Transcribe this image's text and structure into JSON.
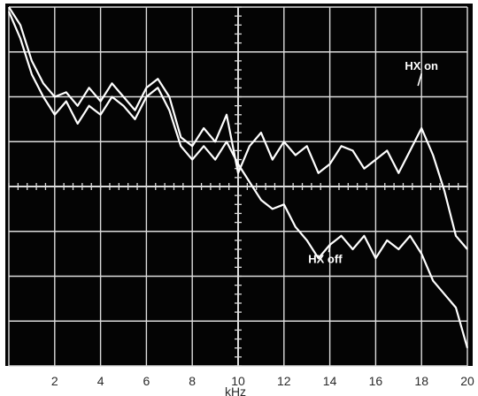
{
  "chart_data": {
    "type": "line",
    "xlabel": "kHz",
    "xlim": [
      0,
      20
    ],
    "ylim": [
      0,
      8
    ],
    "grid": true,
    "x_tick_labels": [
      "2",
      "4",
      "6",
      "8",
      "10",
      "12",
      "14",
      "16",
      "18",
      "20"
    ],
    "x_tick_values": [
      2,
      4,
      6,
      8,
      10,
      12,
      14,
      16,
      18,
      20
    ],
    "annotations": [
      {
        "text": "HX on",
        "x": 18.0,
        "y": 6.6
      },
      {
        "text": "HX off",
        "x": 13.8,
        "y": 2.3
      }
    ],
    "series": [
      {
        "key": "hx_on",
        "color": "#ffffff",
        "x": [
          0,
          0.5,
          1,
          1.5,
          2,
          2.5,
          3,
          3.5,
          4,
          4.5,
          5,
          5.5,
          6,
          6.5,
          7,
          7.5,
          8,
          8.5,
          9,
          9.5,
          10,
          10.5,
          11,
          11.5,
          12,
          12.5,
          13,
          13.5,
          14,
          14.5,
          15,
          15.5,
          16,
          16.5,
          17,
          17.5,
          18,
          18.5,
          19,
          19.5,
          20
        ],
        "y": [
          8.0,
          7.6,
          6.8,
          6.3,
          6.0,
          6.1,
          5.8,
          6.2,
          5.9,
          6.3,
          6.0,
          5.7,
          6.2,
          6.4,
          6.0,
          5.1,
          4.9,
          5.3,
          5.0,
          5.6,
          4.3,
          4.9,
          5.2,
          4.6,
          5.0,
          4.7,
          4.9,
          4.3,
          4.5,
          4.9,
          4.8,
          4.4,
          4.6,
          4.8,
          4.3,
          4.8,
          5.3,
          4.7,
          3.9,
          2.9,
          2.6
        ]
      },
      {
        "key": "hx_off",
        "color": "#ffffff",
        "x": [
          0,
          0.5,
          1,
          1.5,
          2,
          2.5,
          3,
          3.5,
          4,
          4.5,
          5,
          5.5,
          6,
          6.5,
          7,
          7.5,
          8,
          8.5,
          9,
          9.5,
          10,
          10.5,
          11,
          11.5,
          12,
          12.5,
          13,
          13.5,
          14,
          14.5,
          15,
          15.5,
          16,
          16.5,
          17,
          17.5,
          18,
          18.5,
          19,
          19.5,
          20
        ],
        "y": [
          7.9,
          7.3,
          6.5,
          6.0,
          5.6,
          5.9,
          5.4,
          5.8,
          5.6,
          6.0,
          5.8,
          5.5,
          6.0,
          6.2,
          5.7,
          4.9,
          4.6,
          4.9,
          4.6,
          5.0,
          4.5,
          4.1,
          3.7,
          3.5,
          3.6,
          3.1,
          2.8,
          2.4,
          2.7,
          2.9,
          2.6,
          2.9,
          2.4,
          2.8,
          2.6,
          2.9,
          2.5,
          1.9,
          1.6,
          1.3,
          0.4
        ]
      }
    ]
  }
}
